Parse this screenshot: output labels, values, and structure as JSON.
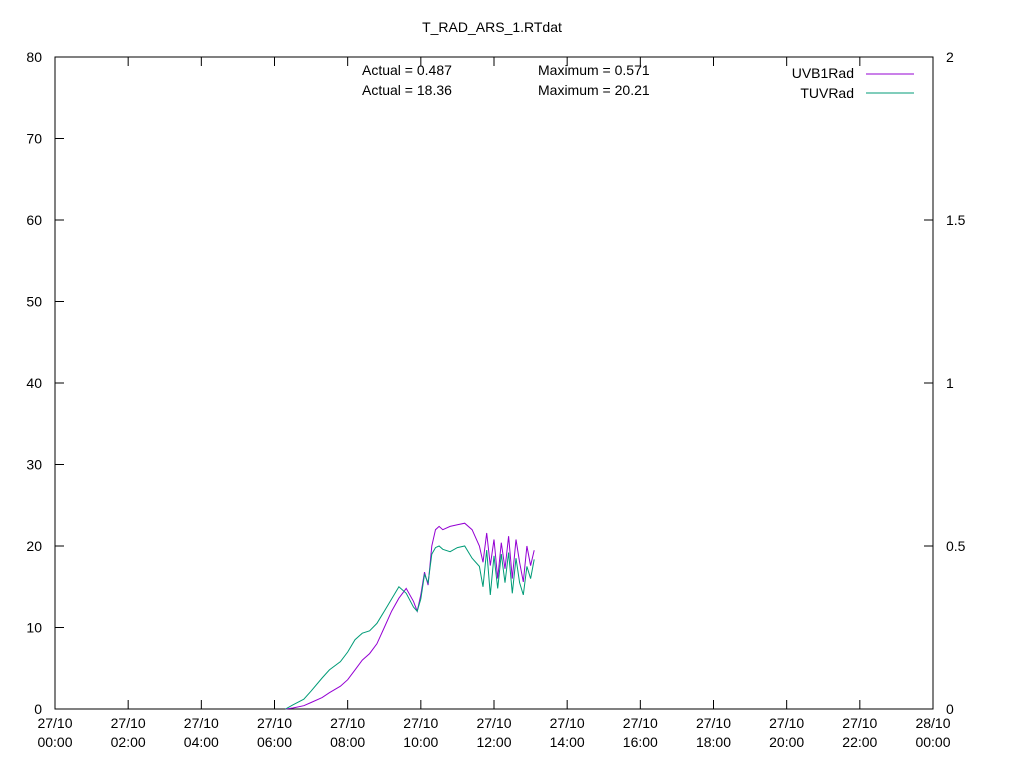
{
  "chart_data": {
    "type": "line",
    "title": "T_RAD_ARS_1.RTdat",
    "xlabel": "",
    "ylabel": "",
    "x_ticks": [
      "27/10\n00:00",
      "27/10\n02:00",
      "27/10\n04:00",
      "27/10\n06:00",
      "27/10\n08:00",
      "27/10\n10:00",
      "27/10\n12:00",
      "27/10\n14:00",
      "27/10\n16:00",
      "27/10\n18:00",
      "27/10\n20:00",
      "27/10\n22:00",
      "28/10\n00:00"
    ],
    "xlim_hours": [
      0,
      24
    ],
    "ylim_left": [
      0,
      80
    ],
    "y_ticks_left": [
      "0",
      "10",
      "20",
      "30",
      "40",
      "50",
      "60",
      "70",
      "80"
    ],
    "ylim_right": [
      0,
      2
    ],
    "y_ticks_right": [
      "0",
      "0.5",
      "1",
      "1.5",
      "2"
    ],
    "grid": false,
    "legend_position": "top-right",
    "annotations": {
      "actual_1": "Actual = 0.487",
      "actual_2": "Actual = 18.36",
      "maximum_1": "Maximum = 0.571",
      "maximum_2": "Maximum = 20.21"
    },
    "series": [
      {
        "name": "UVB1Rad",
        "color": "#9400d3",
        "axis": "right",
        "x_hours": [
          6.3,
          6.5,
          6.8,
          7.0,
          7.3,
          7.5,
          7.8,
          8.0,
          8.2,
          8.4,
          8.6,
          8.8,
          9.0,
          9.2,
          9.4,
          9.6,
          9.8,
          9.9,
          10.0,
          10.1,
          10.2,
          10.3,
          10.4,
          10.5,
          10.6,
          10.8,
          11.0,
          11.2,
          11.4,
          11.6,
          11.7,
          11.8,
          11.9,
          12.0,
          12.1,
          12.2,
          12.3,
          12.4,
          12.5,
          12.6,
          12.7,
          12.8,
          12.9,
          13.0,
          13.1
        ],
        "values": [
          0.0,
          0.003,
          0.01,
          0.02,
          0.035,
          0.05,
          0.07,
          0.09,
          0.12,
          0.15,
          0.17,
          0.2,
          0.25,
          0.3,
          0.34,
          0.37,
          0.33,
          0.3,
          0.35,
          0.42,
          0.38,
          0.5,
          0.55,
          0.56,
          0.55,
          0.56,
          0.565,
          0.57,
          0.55,
          0.5,
          0.45,
          0.54,
          0.44,
          0.52,
          0.4,
          0.51,
          0.43,
          0.53,
          0.4,
          0.52,
          0.45,
          0.39,
          0.5,
          0.44,
          0.487
        ]
      },
      {
        "name": "TUVRad",
        "color": "#009b77",
        "axis": "left",
        "x_hours": [
          6.3,
          6.5,
          6.8,
          7.0,
          7.3,
          7.5,
          7.8,
          8.0,
          8.2,
          8.4,
          8.6,
          8.8,
          9.0,
          9.2,
          9.4,
          9.6,
          9.8,
          9.9,
          10.0,
          10.1,
          10.2,
          10.3,
          10.4,
          10.5,
          10.6,
          10.8,
          11.0,
          11.2,
          11.4,
          11.6,
          11.7,
          11.8,
          11.9,
          12.0,
          12.1,
          12.2,
          12.3,
          12.4,
          12.5,
          12.6,
          12.7,
          12.8,
          12.9,
          13.0,
          13.1
        ],
        "values": [
          0.0,
          0.5,
          1.2,
          2.2,
          3.8,
          4.8,
          5.8,
          7.0,
          8.5,
          9.3,
          9.6,
          10.5,
          12.0,
          13.5,
          15.0,
          14.2,
          12.5,
          12.0,
          13.5,
          16.5,
          15.5,
          19.0,
          19.8,
          20.0,
          19.6,
          19.3,
          19.8,
          20.0,
          18.5,
          17.5,
          15.0,
          19.5,
          14.0,
          18.8,
          14.8,
          19.0,
          15.5,
          19.2,
          14.2,
          18.5,
          15.5,
          14.0,
          17.5,
          16.0,
          18.36
        ]
      }
    ]
  }
}
